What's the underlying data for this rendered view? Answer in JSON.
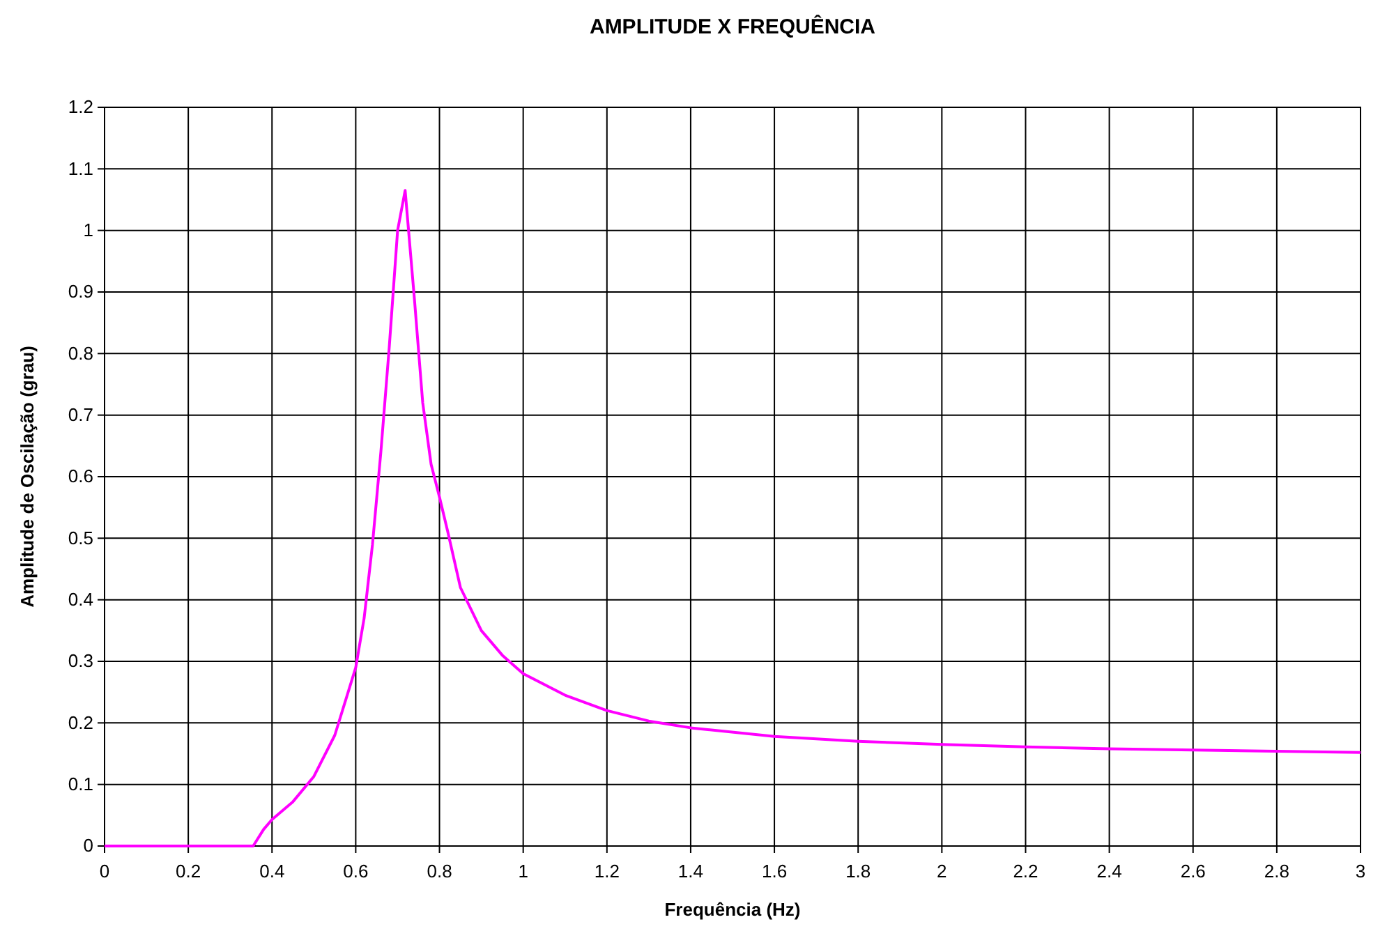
{
  "chart_data": {
    "type": "line",
    "title": "AMPLITUDE X FREQUÊNCIA",
    "xlabel": "Frequência (Hz)",
    "ylabel": "Amplitude de Oscilação (grau)",
    "x": [
      0,
      0.2,
      0.35,
      0.355,
      0.38,
      0.4,
      0.45,
      0.5,
      0.55,
      0.6,
      0.62,
      0.64,
      0.66,
      0.68,
      0.7,
      0.718,
      0.74,
      0.76,
      0.78,
      0.8,
      0.82,
      0.85,
      0.9,
      0.95,
      1,
      1.1,
      1.2,
      1.3,
      1.4,
      1.6,
      1.8,
      2,
      2.2,
      2.4,
      2.6,
      2.8,
      3
    ],
    "series": [
      {
        "color": "#ff00ff",
        "values": [
          0,
          0,
          0,
          0,
          0.027,
          0.043,
          0.072,
          0.113,
          0.18,
          0.29,
          0.37,
          0.49,
          0.64,
          0.81,
          1,
          1.065,
          0.89,
          0.72,
          0.62,
          0.567,
          0.51,
          0.42,
          0.35,
          0.31,
          0.28,
          0.245,
          0.22,
          0.203,
          0.192,
          0.178,
          0.17,
          0.165,
          0.161,
          0.158,
          0.156,
          0.154,
          0.152
        ]
      }
    ],
    "xlim": [
      0,
      3
    ],
    "xticks": [
      0,
      0.2,
      0.4,
      0.6,
      0.8,
      1,
      1.2,
      1.4,
      1.6,
      1.8,
      2,
      2.2,
      2.4,
      2.6,
      2.8,
      3
    ],
    "ylim": [
      0,
      1.2
    ],
    "yticks": [
      0,
      0.1,
      0.2,
      0.3,
      0.4,
      0.5,
      0.6,
      0.7,
      0.8,
      0.9,
      1,
      1.1,
      1.2
    ],
    "grid": true,
    "marker": "none",
    "line_style": "solid"
  }
}
